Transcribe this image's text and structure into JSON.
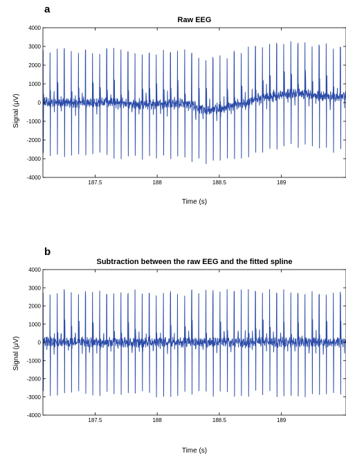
{
  "chart_data": [
    {
      "type": "line",
      "panel_label": "a",
      "title": "Raw EEG",
      "xlabel": "Time (s)",
      "ylabel": "Signal (μV)",
      "xlim": [
        187.08,
        189.52
      ],
      "ylim": [
        -4000,
        4000
      ],
      "xticks": [
        187.5,
        188,
        188.5,
        189
      ],
      "xtick_labels": [
        "187.5",
        "188",
        "188.5",
        "189"
      ],
      "yticks": [
        -4000,
        -3000,
        -2000,
        -1000,
        0,
        1000,
        2000,
        3000,
        4000
      ],
      "ytick_labels": [
        "-4000",
        "-3000",
        "-2000",
        "-1000",
        "0",
        "1000",
        "2000",
        "3000",
        "4000"
      ],
      "grid": false,
      "series": [
        {
          "color": "#2b4ba8",
          "description_of_shape": "periodic spikes roughly every 0.057 s, peaks about +3000, troughs about -3100, with slowly drifting baseline (dips near 188.4 s, rises after 189 s)",
          "x": [
            187.08,
            187.2,
            187.3,
            187.4,
            187.5,
            187.6,
            187.7,
            187.8,
            187.9,
            188.0,
            188.1,
            188.2,
            188.3,
            188.4,
            188.5,
            188.6,
            188.7,
            188.8,
            188.9,
            189.0,
            189.1,
            189.2,
            189.3,
            189.4,
            189.52
          ],
          "baseline": [
            0,
            0,
            -20,
            10,
            0,
            30,
            -20,
            -80,
            -150,
            -100,
            -50,
            -30,
            -200,
            -400,
            -350,
            -150,
            0,
            200,
            300,
            400,
            500,
            450,
            350,
            300,
            300
          ],
          "spike_interval_s": 0.057,
          "spike_peak": 3000,
          "spike_trough": -3100
        }
      ]
    },
    {
      "type": "line",
      "panel_label": "b",
      "title": "Subtraction between the raw EEG and the fitted spline",
      "xlabel": "Time (s)",
      "ylabel": "Signal (μV)",
      "xlim": [
        187.08,
        189.52
      ],
      "ylim": [
        -4000,
        4000
      ],
      "xticks": [
        187.5,
        188,
        188.5,
        189
      ],
      "xtick_labels": [
        "187.5",
        "188",
        "188.5",
        "189"
      ],
      "yticks": [
        -4000,
        -3000,
        -2000,
        -1000,
        0,
        1000,
        2000,
        3000,
        4000
      ],
      "ytick_labels": [
        "-4000",
        "-3000",
        "-2000",
        "-1000",
        "0",
        "1000",
        "2000",
        "3000",
        "4000"
      ],
      "grid": false,
      "series": [
        {
          "color": "#2b4ba8",
          "description_of_shape": "same periodic spikes with the drifting baseline removed; centered on 0",
          "x": [
            187.08,
            189.52
          ],
          "baseline": [
            0,
            0
          ],
          "spike_interval_s": 0.057,
          "spike_peak": 3000,
          "spike_trough": -3100
        }
      ]
    }
  ]
}
